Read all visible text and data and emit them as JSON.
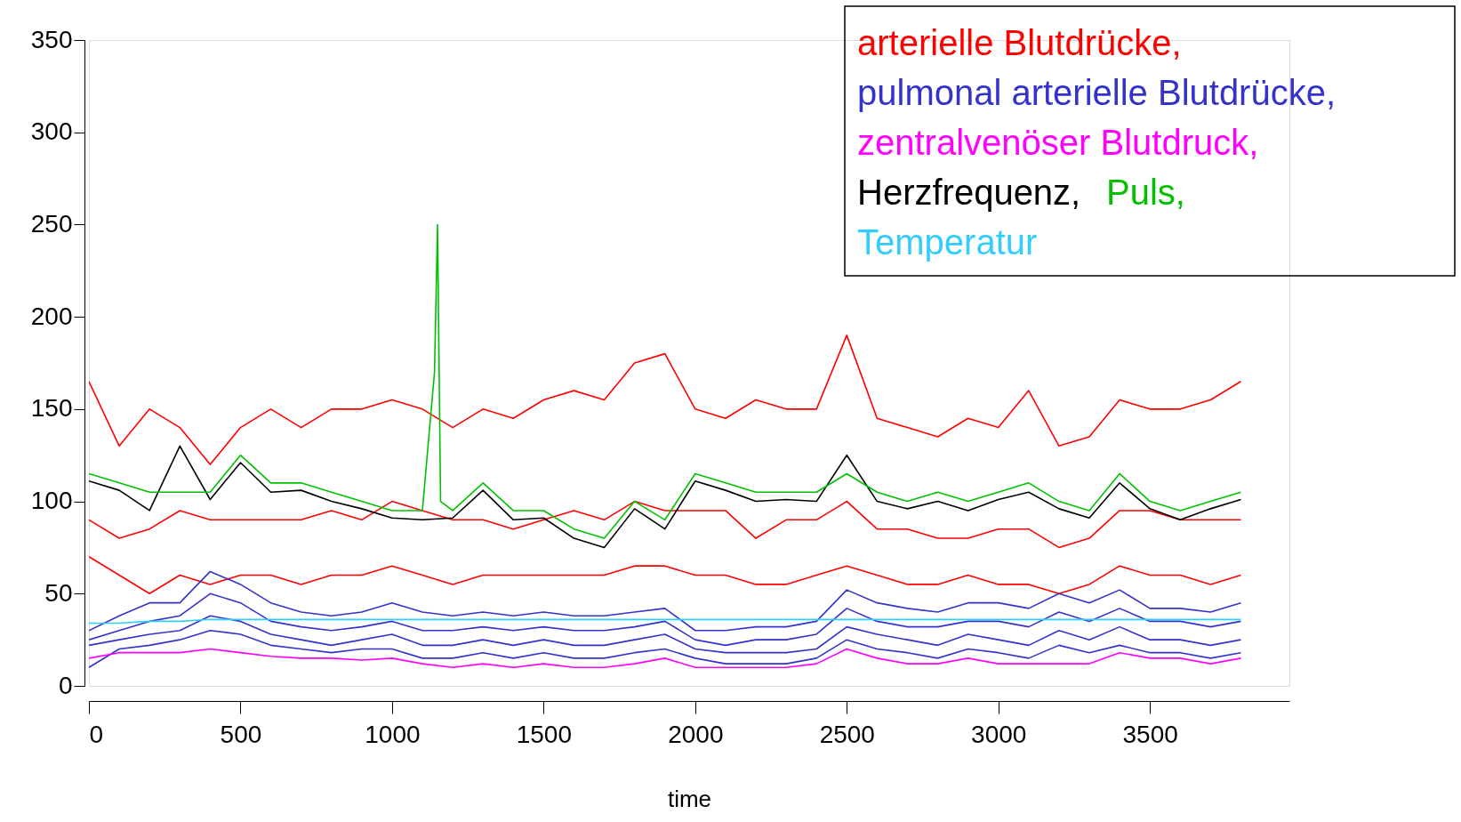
{
  "chart_data": {
    "type": "line",
    "xlabel": "time",
    "xlim": [
      0,
      3960
    ],
    "ylim": [
      0,
      350
    ],
    "xticks": [
      0,
      500,
      1000,
      1500,
      2000,
      2500,
      3000,
      3500
    ],
    "yticks": [
      0,
      50,
      100,
      150,
      200,
      250,
      300,
      350
    ],
    "grid": false,
    "legend": "top right",
    "marker": "none",
    "line_style": "solid",
    "x": [
      0,
      100,
      200,
      300,
      400,
      500,
      600,
      700,
      800,
      900,
      1000,
      1100,
      1200,
      1300,
      1400,
      1500,
      1600,
      1700,
      1800,
      1900,
      2000,
      2100,
      2200,
      2300,
      2400,
      2500,
      2600,
      2700,
      2800,
      2900,
      3000,
      3100,
      3200,
      3300,
      3400,
      3500,
      3600,
      3700,
      3800
    ],
    "series": [
      {
        "name": "arterielle Blutdrücke,",
        "color": "#ff0000",
        "values": [
          165,
          130,
          150,
          140,
          120,
          140,
          150,
          140,
          150,
          150,
          155,
          150,
          140,
          150,
          145,
          155,
          160,
          155,
          175,
          180,
          150,
          145,
          155,
          150,
          150,
          190,
          145,
          140,
          135,
          145,
          140,
          160,
          130,
          135,
          155,
          150,
          150,
          155,
          165
        ]
      },
      {
        "color": "#ff0000",
        "values": [
          90,
          80,
          85,
          95,
          90,
          90,
          90,
          90,
          95,
          90,
          100,
          95,
          90,
          90,
          85,
          90,
          95,
          90,
          100,
          95,
          95,
          95,
          80,
          90,
          90,
          100,
          85,
          85,
          80,
          80,
          85,
          85,
          75,
          80,
          95,
          95,
          90,
          90,
          90
        ]
      },
      {
        "color": "#ff0000",
        "values": [
          70,
          60,
          50,
          60,
          55,
          60,
          60,
          55,
          60,
          60,
          65,
          60,
          55,
          60,
          60,
          60,
          60,
          60,
          65,
          65,
          60,
          60,
          55,
          55,
          60,
          65,
          60,
          55,
          55,
          60,
          55,
          55,
          50,
          55,
          65,
          60,
          60,
          55,
          60
        ]
      },
      {
        "name": "pulmonal arterielle Blutdrücke,",
        "color": "#3333cc",
        "values": [
          30,
          38,
          45,
          45,
          62,
          55,
          45,
          40,
          38,
          40,
          45,
          40,
          38,
          40,
          38,
          40,
          38,
          38,
          40,
          42,
          30,
          30,
          32,
          32,
          35,
          52,
          45,
          42,
          40,
          45,
          45,
          42,
          50,
          45,
          52,
          42,
          42,
          40,
          45
        ]
      },
      {
        "color": "#3333cc",
        "values": [
          25,
          30,
          35,
          38,
          50,
          45,
          35,
          32,
          30,
          32,
          35,
          30,
          30,
          32,
          30,
          32,
          30,
          30,
          32,
          35,
          25,
          22,
          25,
          25,
          28,
          42,
          35,
          32,
          32,
          35,
          35,
          32,
          40,
          35,
          42,
          35,
          35,
          32,
          35
        ]
      },
      {
        "color": "#3333cc",
        "values": [
          22,
          25,
          28,
          30,
          38,
          35,
          28,
          25,
          22,
          25,
          28,
          22,
          22,
          25,
          22,
          25,
          22,
          22,
          25,
          28,
          20,
          18,
          18,
          18,
          20,
          32,
          28,
          25,
          22,
          28,
          25,
          22,
          30,
          25,
          32,
          25,
          25,
          22,
          25
        ]
      },
      {
        "color": "#3333cc",
        "values": [
          10,
          20,
          22,
          25,
          30,
          28,
          22,
          20,
          18,
          20,
          20,
          15,
          15,
          18,
          15,
          18,
          15,
          15,
          18,
          20,
          15,
          12,
          12,
          12,
          15,
          25,
          20,
          18,
          15,
          20,
          18,
          15,
          22,
          18,
          22,
          18,
          18,
          15,
          18
        ]
      },
      {
        "name": "zentralvenöser Blutdruck,",
        "color": "#ff00ff",
        "values": [
          15,
          18,
          18,
          18,
          20,
          18,
          16,
          15,
          15,
          14,
          15,
          12,
          10,
          12,
          10,
          12,
          10,
          10,
          12,
          15,
          10,
          10,
          10,
          10,
          12,
          20,
          15,
          12,
          12,
          15,
          12,
          12,
          12,
          12,
          18,
          15,
          15,
          12,
          15
        ]
      },
      {
        "name": "Herzfrequenz,",
        "color": "#000000",
        "values": [
          111,
          106,
          95,
          130,
          101,
          121,
          105,
          106,
          100,
          96,
          91,
          90,
          91,
          106,
          90,
          91,
          80,
          75,
          96,
          85,
          111,
          106,
          100,
          101,
          100,
          125,
          100,
          96,
          100,
          95,
          101,
          105,
          96,
          91,
          110,
          96,
          90,
          96,
          101
        ]
      },
      {
        "name": "Puls,",
        "color": "#00c000",
        "x": [
          0,
          100,
          200,
          300,
          400,
          500,
          600,
          700,
          800,
          900,
          1000,
          1100,
          1140,
          1150,
          1160,
          1200,
          1300,
          1400,
          1500,
          1600,
          1700,
          1800,
          1900,
          2000,
          2100,
          2200,
          2300,
          2400,
          2500,
          2600,
          2700,
          2800,
          2900,
          3000,
          3100,
          3200,
          3300,
          3400,
          3500,
          3600,
          3700,
          3800
        ],
        "values": [
          115,
          110,
          105,
          105,
          105,
          125,
          110,
          110,
          105,
          100,
          95,
          95,
          170,
          250,
          100,
          95,
          110,
          95,
          95,
          85,
          80,
          100,
          90,
          115,
          110,
          105,
          105,
          105,
          115,
          105,
          100,
          105,
          100,
          105,
          110,
          100,
          95,
          115,
          100,
          95,
          100,
          105
        ]
      },
      {
        "name": "Temperatur",
        "color": "#33ccff",
        "values": [
          34,
          34,
          35,
          35,
          36,
          36,
          36,
          36,
          36,
          36,
          36,
          36,
          36,
          36,
          36,
          36,
          36,
          36,
          36,
          36,
          36,
          36,
          36,
          36,
          36,
          36,
          36,
          36,
          36,
          36,
          36,
          36,
          36,
          36,
          36,
          36,
          36,
          36,
          36
        ]
      }
    ]
  }
}
